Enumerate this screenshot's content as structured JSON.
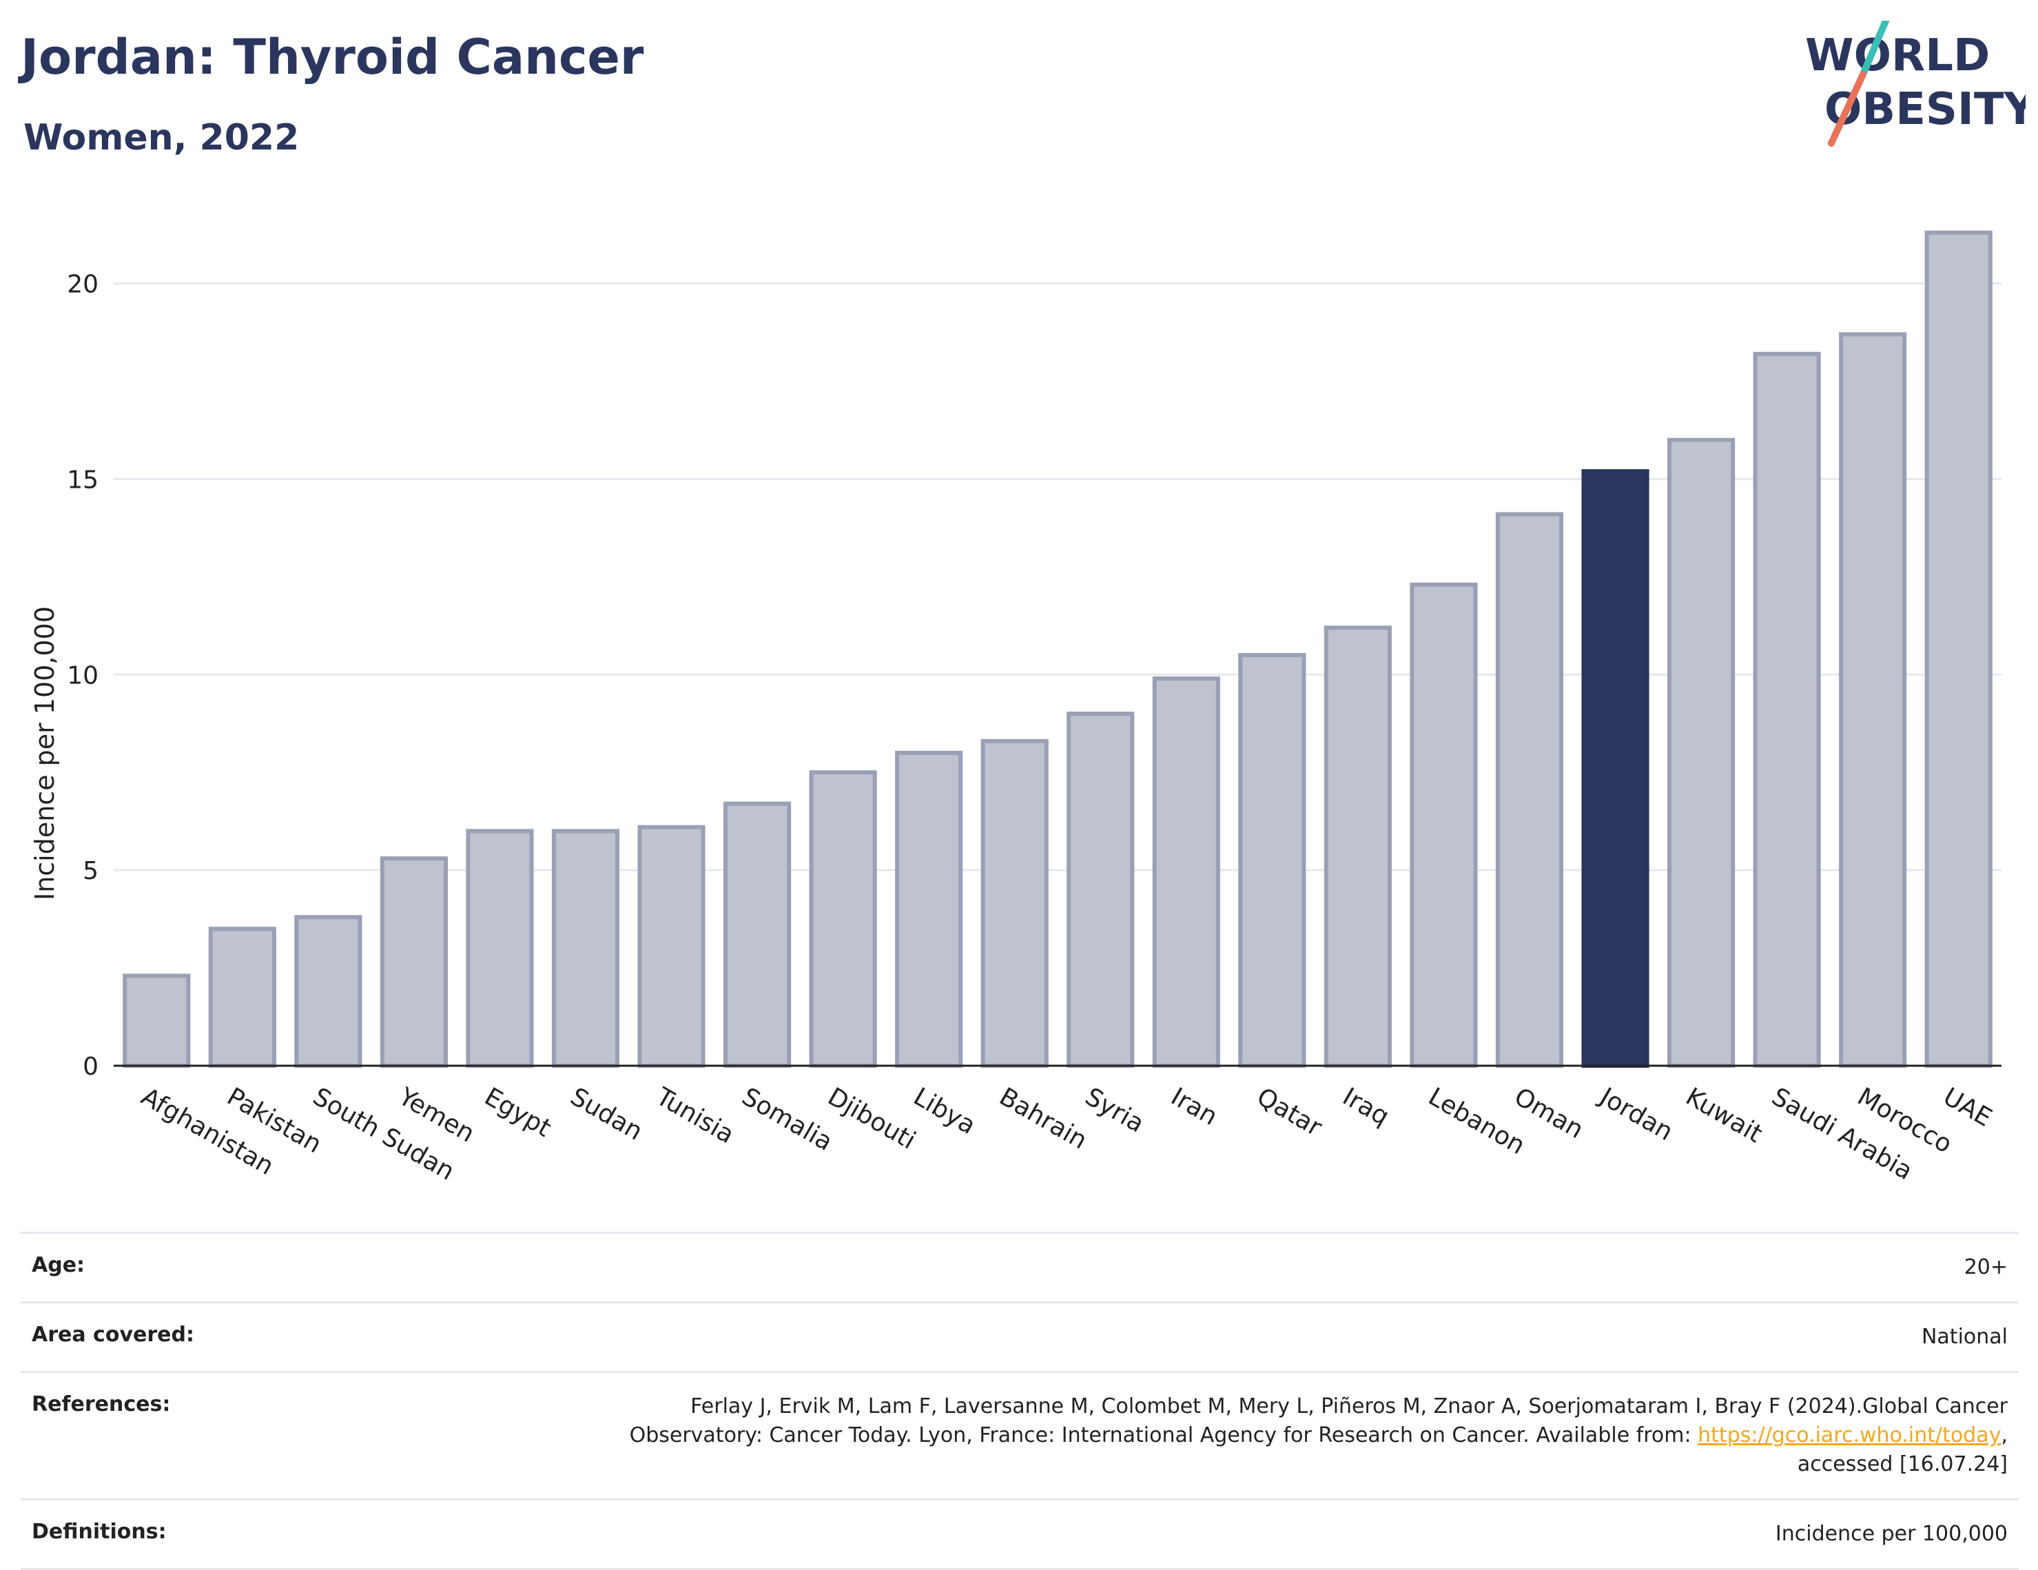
{
  "header": {
    "title": "Jordan: Thyroid Cancer",
    "subtitle": "Women, 2022"
  },
  "logo": {
    "line1": "WORLD",
    "line2": "OBESITY",
    "colors": {
      "text": "#2b365f",
      "slash_top": "#3bbfb5",
      "slash_bottom": "#e8735a"
    }
  },
  "colors": {
    "bar": "#bfc3cf",
    "bar_border": "#9aa0b4",
    "highlight": "#2b365f",
    "grid": "#e6e8ee",
    "axis": "#222222"
  },
  "chart_data": {
    "type": "bar",
    "ylabel": "Incidence per 100,000",
    "ylim": [
      0,
      22
    ],
    "yticks": [
      0,
      5,
      10,
      15,
      20
    ],
    "grid": true,
    "highlight": "Jordan",
    "categories": [
      "Afghanistan",
      "Pakistan",
      "South Sudan",
      "Yemen",
      "Egypt",
      "Sudan",
      "Tunisia",
      "Somalia",
      "Djibouti",
      "Libya",
      "Bahrain",
      "Syria",
      "Iran",
      "Qatar",
      "Iraq",
      "Lebanon",
      "Oman",
      "Jordan",
      "Kuwait",
      "Saudi Arabia",
      "Morocco",
      "UAE"
    ],
    "values": [
      2.3,
      3.5,
      3.8,
      5.3,
      6.0,
      6.0,
      6.1,
      6.7,
      7.5,
      8.0,
      8.3,
      9.0,
      9.9,
      10.5,
      11.2,
      12.3,
      14.1,
      15.2,
      16.0,
      18.2,
      18.7,
      21.3
    ]
  },
  "meta": {
    "age_label": "Age:",
    "age_value": "20+",
    "area_label": "Area covered:",
    "area_value": "National",
    "references_label": "References:",
    "references_line1": "Ferlay J, Ervik M, Lam F, Laversanne M, Colombet M, Mery L, Piñeros M, Znaor A, Soerjomataram I, Bray F (2024).Global Cancer",
    "references_line2_pre": "Observatory: Cancer Today. Lyon, France: International Agency for Research on Cancer. Available from: ",
    "references_link": "https://gco.iarc.who.int/today",
    "references_line2_post": ",",
    "references_line3": "accessed [16.07.24]",
    "definitions_label": "Definitions:",
    "definitions_value": "Incidence per 100,000"
  }
}
